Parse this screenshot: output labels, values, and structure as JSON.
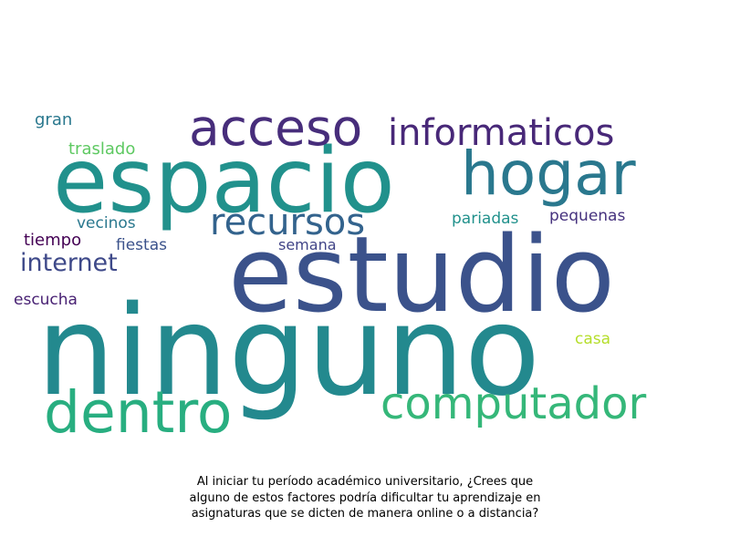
{
  "wordcloud": {
    "words": [
      {
        "text": "ninguno",
        "color": "#23898e"
      },
      {
        "text": "estudio",
        "color": "#3b528b"
      },
      {
        "text": "espacio",
        "color": "#21918c"
      },
      {
        "text": "hogar",
        "color": "#2a788e"
      },
      {
        "text": "acceso",
        "color": "#472d7b"
      },
      {
        "text": "informaticos",
        "color": "#482878"
      },
      {
        "text": "recursos",
        "color": "#33638d"
      },
      {
        "text": "dentro",
        "color": "#28ae80"
      },
      {
        "text": "computador",
        "color": "#35b779"
      },
      {
        "text": "internet",
        "color": "#3e4989"
      },
      {
        "text": "gran",
        "color": "#2a788e"
      },
      {
        "text": "traslado",
        "color": "#5ec962"
      },
      {
        "text": "vecinos",
        "color": "#2a788e"
      },
      {
        "text": "tiempo",
        "color": "#440154"
      },
      {
        "text": "fiestas",
        "color": "#3b528b"
      },
      {
        "text": "semana",
        "color": "#414487"
      },
      {
        "text": "pariadas",
        "color": "#21918c"
      },
      {
        "text": "pequenas",
        "color": "#46327e"
      },
      {
        "text": "escucha",
        "color": "#482173"
      },
      {
        "text": "casa",
        "color": "#b5de2b"
      }
    ]
  },
  "caption": {
    "line1": "Al iniciar tu período académico universitario, ¿Crees que",
    "line2": "alguno de estos factores podría dificultar tu aprendizaje en",
    "line3": "asignaturas que se dicten de manera online o a distancia?"
  }
}
